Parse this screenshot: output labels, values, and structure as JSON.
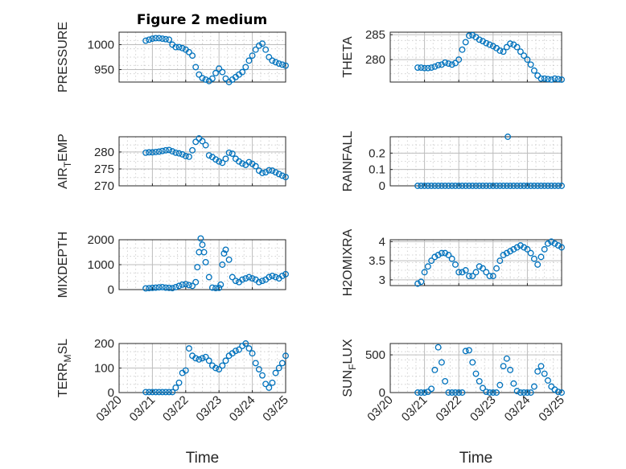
{
  "figure_title": "Figure 2 medium",
  "xlabel": "Time",
  "xtick_labels": [
    "03/20",
    "03/21",
    "03/22",
    "03/23",
    "03/24",
    "03/25"
  ],
  "colors": {
    "series": "#0072BD",
    "text": "#262626"
  },
  "chart_data": [
    {
      "type": "scatter",
      "ylabel": "PRESSURE",
      "xlim": [
        0,
        5
      ],
      "ylim": [
        925,
        1025
      ],
      "yticks": [
        950,
        1000
      ],
      "x": [
        0.8,
        0.9,
        1.0,
        1.1,
        1.2,
        1.3,
        1.4,
        1.5,
        1.6,
        1.7,
        1.8,
        1.9,
        2.0,
        2.1,
        2.2,
        2.3,
        2.4,
        2.5,
        2.6,
        2.7,
        2.8,
        2.9,
        3.0,
        3.1,
        3.2,
        3.3,
        3.4,
        3.5,
        3.6,
        3.7,
        3.8,
        3.9,
        4.0,
        4.1,
        4.2,
        4.3,
        4.4,
        4.5,
        4.6,
        4.7,
        4.8,
        4.9,
        5.0
      ],
      "y": [
        1008,
        1010,
        1012,
        1013,
        1013,
        1012,
        1011,
        1010,
        1000,
        995,
        995,
        993,
        990,
        985,
        978,
        955,
        940,
        933,
        930,
        927,
        932,
        943,
        952,
        945,
        932,
        925,
        930,
        935,
        940,
        945,
        955,
        968,
        978,
        990,
        998,
        1002,
        990,
        975,
        968,
        965,
        962,
        960,
        958
      ]
    },
    {
      "type": "scatter",
      "ylabel": "THETA",
      "xlim": [
        0,
        5
      ],
      "ylim": [
        275.5,
        285.5
      ],
      "yticks": [
        280,
        285
      ],
      "x": [
        0.8,
        0.9,
        1.0,
        1.1,
        1.2,
        1.3,
        1.4,
        1.5,
        1.6,
        1.7,
        1.8,
        1.9,
        2.0,
        2.1,
        2.2,
        2.3,
        2.4,
        2.5,
        2.6,
        2.7,
        2.8,
        2.9,
        3.0,
        3.1,
        3.2,
        3.3,
        3.4,
        3.5,
        3.6,
        3.7,
        3.8,
        3.9,
        4.0,
        4.1,
        4.2,
        4.3,
        4.4,
        4.5,
        4.6,
        4.7,
        4.8,
        4.9,
        5.0
      ],
      "y": [
        278.4,
        278.4,
        278.3,
        278.3,
        278.4,
        278.6,
        278.9,
        279.0,
        279.4,
        279.2,
        279.0,
        279.3,
        280.0,
        282.0,
        283.5,
        284.8,
        284.9,
        284.5,
        284.0,
        283.7,
        283.3,
        283.0,
        282.7,
        282.3,
        281.8,
        281.6,
        282.5,
        283.2,
        283.0,
        282.5,
        281.6,
        280.8,
        280.0,
        279.0,
        277.8,
        276.8,
        276.2,
        276.2,
        276.1,
        276.0,
        276.2,
        276.1,
        276.0
      ]
    },
    {
      "type": "scatter",
      "ylabel": "AIR_TEMP",
      "ylabel_main": "AIR",
      "ylabel_sub": "T",
      "ylabel_rest": "EMP",
      "xlim": [
        0,
        5
      ],
      "ylim": [
        270,
        284.5
      ],
      "yticks": [
        270,
        275,
        280
      ],
      "x": [
        0.8,
        0.9,
        1.0,
        1.1,
        1.2,
        1.3,
        1.4,
        1.5,
        1.6,
        1.7,
        1.8,
        1.9,
        2.0,
        2.1,
        2.2,
        2.3,
        2.4,
        2.5,
        2.6,
        2.7,
        2.8,
        2.9,
        3.0,
        3.1,
        3.2,
        3.3,
        3.4,
        3.5,
        3.6,
        3.7,
        3.8,
        3.9,
        4.0,
        4.1,
        4.2,
        4.3,
        4.4,
        4.5,
        4.6,
        4.7,
        4.8,
        4.9,
        5.0
      ],
      "y": [
        279.8,
        279.9,
        279.9,
        280.0,
        280.1,
        280.3,
        280.5,
        280.6,
        280.2,
        279.8,
        279.6,
        279.3,
        278.8,
        278.6,
        280.5,
        283.0,
        284.0,
        283.2,
        282.0,
        279.0,
        278.5,
        277.8,
        277.2,
        276.8,
        278.0,
        279.8,
        279.5,
        278.0,
        277.2,
        276.6,
        276.2,
        277.0,
        276.5,
        275.8,
        274.5,
        273.8,
        274.0,
        274.6,
        274.5,
        274.0,
        273.5,
        273.0,
        272.6
      ]
    },
    {
      "type": "scatter",
      "ylabel": "RAINFALL",
      "xlim": [
        0,
        5
      ],
      "ylim": [
        0,
        0.3
      ],
      "yticks": [
        0,
        0.1,
        0.2
      ],
      "ytick_labels": [
        "0",
        "0.1",
        "0.2"
      ],
      "x": [
        0.8,
        0.9,
        1.0,
        1.1,
        1.2,
        1.3,
        1.4,
        1.5,
        1.6,
        1.7,
        1.8,
        1.9,
        2.0,
        2.1,
        2.2,
        2.3,
        2.4,
        2.5,
        2.6,
        2.7,
        2.8,
        2.9,
        3.0,
        3.1,
        3.2,
        3.3,
        3.4,
        3.5,
        3.6,
        3.7,
        3.8,
        3.9,
        4.0,
        4.1,
        4.2,
        4.3,
        4.4,
        4.5,
        4.6,
        4.7,
        4.8,
        4.9,
        5.0,
        3.43
      ],
      "y": [
        0,
        0,
        0,
        0,
        0,
        0,
        0,
        0,
        0,
        0,
        0,
        0,
        0,
        0,
        0,
        0,
        0,
        0,
        0,
        0,
        0,
        0,
        0,
        0,
        0,
        0,
        0,
        0,
        0,
        0,
        0,
        0,
        0,
        0,
        0,
        0,
        0,
        0,
        0,
        0,
        0,
        0,
        0,
        0.3
      ]
    },
    {
      "type": "scatter",
      "ylabel": "MIXDEPTH",
      "xlim": [
        0,
        5
      ],
      "ylim": [
        0,
        2000
      ],
      "yticks": [
        0,
        1000,
        2000
      ],
      "x": [
        0.8,
        0.9,
        1.0,
        1.1,
        1.2,
        1.3,
        1.4,
        1.5,
        1.6,
        1.7,
        1.8,
        1.9,
        2.0,
        2.1,
        2.2,
        2.3,
        2.35,
        2.4,
        2.45,
        2.5,
        2.55,
        2.6,
        2.7,
        2.8,
        2.9,
        3.0,
        3.05,
        3.1,
        3.15,
        3.2,
        3.3,
        3.4,
        3.5,
        3.6,
        3.7,
        3.8,
        3.9,
        4.0,
        4.1,
        4.2,
        4.3,
        4.4,
        4.5,
        4.6,
        4.7,
        4.8,
        4.9,
        5.0
      ],
      "y": [
        50,
        60,
        70,
        80,
        90,
        100,
        80,
        70,
        60,
        100,
        150,
        200,
        220,
        180,
        150,
        300,
        900,
        1500,
        2050,
        1800,
        1500,
        1100,
        500,
        80,
        60,
        70,
        200,
        1000,
        1450,
        1600,
        1200,
        500,
        350,
        300,
        400,
        450,
        500,
        450,
        400,
        300,
        350,
        400,
        500,
        550,
        500,
        450,
        550,
        620
      ]
    },
    {
      "type": "scatter",
      "ylabel": "H2OMIXRA",
      "xlim": [
        0,
        5
      ],
      "ylim": [
        2.85,
        4.05
      ],
      "yticks": [
        3,
        3.5,
        4
      ],
      "ytick_labels": [
        "3",
        "3.5",
        "4"
      ],
      "x": [
        0.8,
        0.9,
        1.0,
        1.1,
        1.2,
        1.3,
        1.4,
        1.5,
        1.6,
        1.7,
        1.8,
        1.9,
        2.0,
        2.1,
        2.2,
        2.3,
        2.4,
        2.5,
        2.6,
        2.7,
        2.8,
        2.9,
        3.0,
        3.1,
        3.2,
        3.3,
        3.4,
        3.5,
        3.6,
        3.7,
        3.8,
        3.9,
        4.0,
        4.1,
        4.2,
        4.3,
        4.4,
        4.5,
        4.6,
        4.7,
        4.8,
        4.9,
        5.0
      ],
      "y": [
        2.9,
        2.95,
        3.2,
        3.35,
        3.5,
        3.6,
        3.65,
        3.7,
        3.7,
        3.65,
        3.55,
        3.4,
        3.2,
        3.2,
        3.25,
        3.1,
        3.1,
        3.2,
        3.35,
        3.3,
        3.2,
        3.1,
        3.1,
        3.3,
        3.5,
        3.65,
        3.7,
        3.75,
        3.8,
        3.85,
        3.9,
        3.85,
        3.8,
        3.7,
        3.55,
        3.4,
        3.6,
        3.8,
        3.95,
        4.0,
        3.95,
        3.9,
        3.85
      ]
    },
    {
      "type": "scatter",
      "ylabel": "TERR_MSL",
      "ylabel_main": "TERR",
      "ylabel_sub": "M",
      "ylabel_rest": "SL",
      "xlim": [
        0,
        5
      ],
      "ylim": [
        0,
        200
      ],
      "yticks": [
        0,
        100,
        200
      ],
      "x": [
        0.8,
        0.9,
        1.0,
        1.1,
        1.2,
        1.3,
        1.4,
        1.5,
        1.6,
        1.7,
        1.8,
        1.9,
        2.0,
        2.1,
        2.2,
        2.3,
        2.4,
        2.5,
        2.6,
        2.7,
        2.8,
        2.9,
        3.0,
        3.1,
        3.2,
        3.3,
        3.4,
        3.5,
        3.6,
        3.7,
        3.8,
        3.9,
        4.0,
        4.1,
        4.2,
        4.3,
        4.4,
        4.5,
        4.6,
        4.7,
        4.8,
        4.9,
        5.0
      ],
      "y": [
        2,
        2,
        2,
        2,
        2,
        2,
        2,
        2,
        2,
        20,
        40,
        80,
        90,
        180,
        150,
        140,
        135,
        140,
        145,
        130,
        110,
        100,
        95,
        110,
        130,
        150,
        160,
        170,
        175,
        190,
        200,
        180,
        160,
        120,
        95,
        70,
        35,
        20,
        40,
        80,
        100,
        120,
        150
      ]
    },
    {
      "type": "scatter",
      "ylabel": "SUN_FLUX",
      "ylabel_main": "SUN",
      "ylabel_sub": "F",
      "ylabel_rest": "LUX",
      "xlim": [
        0,
        5
      ],
      "ylim": [
        0,
        650
      ],
      "yticks": [
        0,
        500
      ],
      "x": [
        0.8,
        0.9,
        1.0,
        1.1,
        1.2,
        1.3,
        1.4,
        1.5,
        1.6,
        1.7,
        1.8,
        1.9,
        2.0,
        2.1,
        2.2,
        2.3,
        2.4,
        2.5,
        2.6,
        2.7,
        2.8,
        2.9,
        3.0,
        3.1,
        3.2,
        3.3,
        3.4,
        3.5,
        3.6,
        3.7,
        3.8,
        3.9,
        4.0,
        4.1,
        4.2,
        4.3,
        4.4,
        4.5,
        4.6,
        4.7,
        4.8,
        4.9,
        5.0
      ],
      "y": [
        0,
        0,
        0,
        10,
        50,
        300,
        600,
        400,
        150,
        0,
        0,
        0,
        0,
        0,
        550,
        560,
        400,
        250,
        150,
        60,
        10,
        0,
        0,
        0,
        100,
        350,
        450,
        300,
        120,
        20,
        0,
        0,
        0,
        0,
        80,
        280,
        350,
        250,
        160,
        80,
        40,
        10,
        0
      ]
    }
  ]
}
